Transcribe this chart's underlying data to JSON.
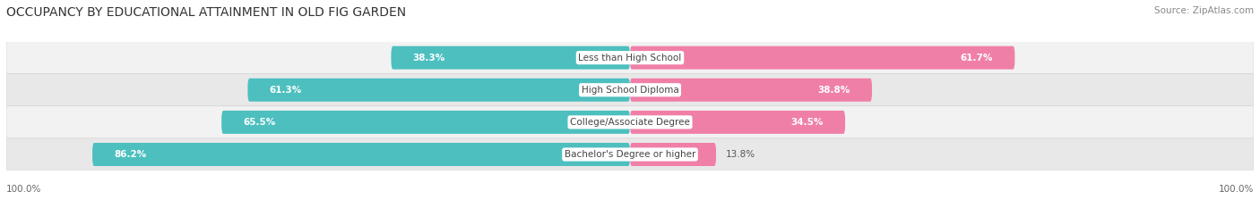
{
  "title": "OCCUPANCY BY EDUCATIONAL ATTAINMENT IN OLD FIG GARDEN",
  "source": "Source: ZipAtlas.com",
  "categories": [
    "Less than High School",
    "High School Diploma",
    "College/Associate Degree",
    "Bachelor's Degree or higher"
  ],
  "owner_values": [
    38.3,
    61.3,
    65.5,
    86.2
  ],
  "renter_values": [
    61.7,
    38.8,
    34.5,
    13.8
  ],
  "owner_color": "#4DBFBF",
  "renter_color": "#F07FA8",
  "row_bg_light": "#F2F2F2",
  "row_bg_dark": "#E8E8E8",
  "title_fontsize": 10,
  "source_fontsize": 7.5,
  "label_fontsize": 7.5,
  "axis_label_fontsize": 7.5,
  "legend_fontsize": 8,
  "figsize": [
    14.06,
    2.33
  ],
  "dpi": 100
}
